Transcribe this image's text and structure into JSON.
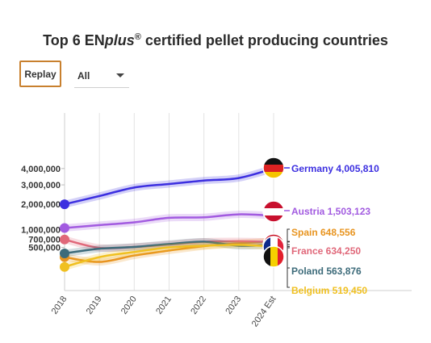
{
  "title": {
    "prefix": "Top 6 EN",
    "emphasis": "plus",
    "mark": "®",
    "suffix": " certified pellet producing countries"
  },
  "controls": {
    "replay_label": "Replay",
    "filter_value": "All"
  },
  "chart_data": {
    "type": "line",
    "title": "Top 6 ENplus® certified pellet producing countries",
    "x": [
      "2018",
      "2019",
      "2020",
      "2021",
      "2022",
      "2023",
      "2024 Est"
    ],
    "y_ticks": [
      {
        "value": 4000000,
        "label": "4,000,000"
      },
      {
        "value": 3000000,
        "label": "3,000,000"
      },
      {
        "value": 2000000,
        "label": "2,000,000"
      },
      {
        "value": 1000000,
        "label": "1,000,000"
      },
      {
        "value": 700000,
        "label": "700,000"
      },
      {
        "value": 500000,
        "label": "500,000"
      }
    ],
    "y_scale": "sqrt",
    "grid": "vertical",
    "legend": "end-of-line labels with flags",
    "series": [
      {
        "name": "Germany",
        "color": "#3c2fe0",
        "flag": "germany-flag",
        "values": [
          2000000,
          2400000,
          2850000,
          3050000,
          3250000,
          3400000,
          4005810
        ],
        "end_label": "Germany 4,005,810"
      },
      {
        "name": "Austria",
        "color": "#a25be0",
        "flag": "austria-flag",
        "values": [
          1050000,
          1150000,
          1250000,
          1420000,
          1440000,
          1560000,
          1503123
        ],
        "end_label": "Austria 1,503,123"
      },
      {
        "name": "Spain",
        "color": "#e8941f",
        "flag": "spain-flag",
        "values": [
          300000,
          220000,
          330000,
          430000,
          530000,
          600000,
          648556
        ],
        "end_label": "Spain 648,556"
      },
      {
        "name": "France",
        "color": "#e0687a",
        "flag": "france-flag",
        "values": [
          700000,
          490000,
          510000,
          570000,
          640000,
          650000,
          634250
        ],
        "end_label": "France 634,250"
      },
      {
        "name": "Poland",
        "color": "#3d6b7a",
        "flag": "poland-flag",
        "values": [
          370000,
          470000,
          510000,
          580000,
          640000,
          540000,
          563876
        ],
        "end_label": "Poland 563,876"
      },
      {
        "name": "Belgium",
        "color": "#f0c020",
        "flag": "belgium-flag",
        "values": [
          150000,
          300000,
          400000,
          500000,
          540000,
          560000,
          519450
        ],
        "end_label": "Belgium 519,450"
      }
    ]
  }
}
